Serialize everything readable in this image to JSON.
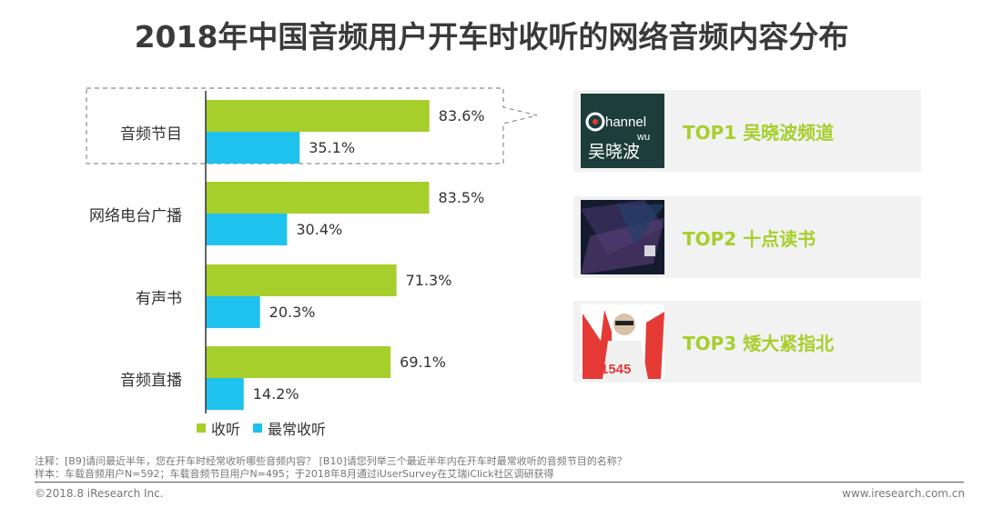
{
  "title": "2018年中国音频用户开车时收听的网络音频内容分布",
  "chart_data": {
    "type": "bar",
    "orientation": "horizontal",
    "categories": [
      "音频节目",
      "网络电台广播",
      "有声书",
      "音频直播"
    ],
    "series": [
      {
        "name": "收听",
        "color": "#a6cf2c",
        "values": [
          83.6,
          83.5,
          71.3,
          69.1
        ]
      },
      {
        "name": "最常收听",
        "color": "#1fc2ec",
        "values": [
          35.1,
          30.4,
          20.3,
          14.2
        ]
      }
    ],
    "value_suffix": "%",
    "xlim": [
      0,
      100
    ],
    "legend": "bottom-left",
    "grid": false
  },
  "top_list": [
    {
      "label": "TOP1 吴晓波频道",
      "thumb": "channel-wu-logo",
      "thumb_text": "Channel WU 吴晓波"
    },
    {
      "label": "TOP2 十点读书",
      "thumb": "reading-app-splash",
      "thumb_text": ""
    },
    {
      "label": "TOP3 矮大紧指北",
      "thumb": "host-portrait",
      "thumb_text": "1545"
    }
  ],
  "notes": {
    "line1": "注释：[B9]请问最近半年，您在开车时经常收听哪些音频内容？ [B10]请您列举三个最近半年内在开车时最常收听的音频节目的名称？",
    "line2": "样本：车载音频用户N=592；车载音频节目用户N=495；于2018年8月通过iUserSurvey在艾瑞iClick社区调研获得"
  },
  "footer": {
    "left": "©2018.8 iResearch Inc.",
    "right": "www.iresearch.com.cn"
  }
}
